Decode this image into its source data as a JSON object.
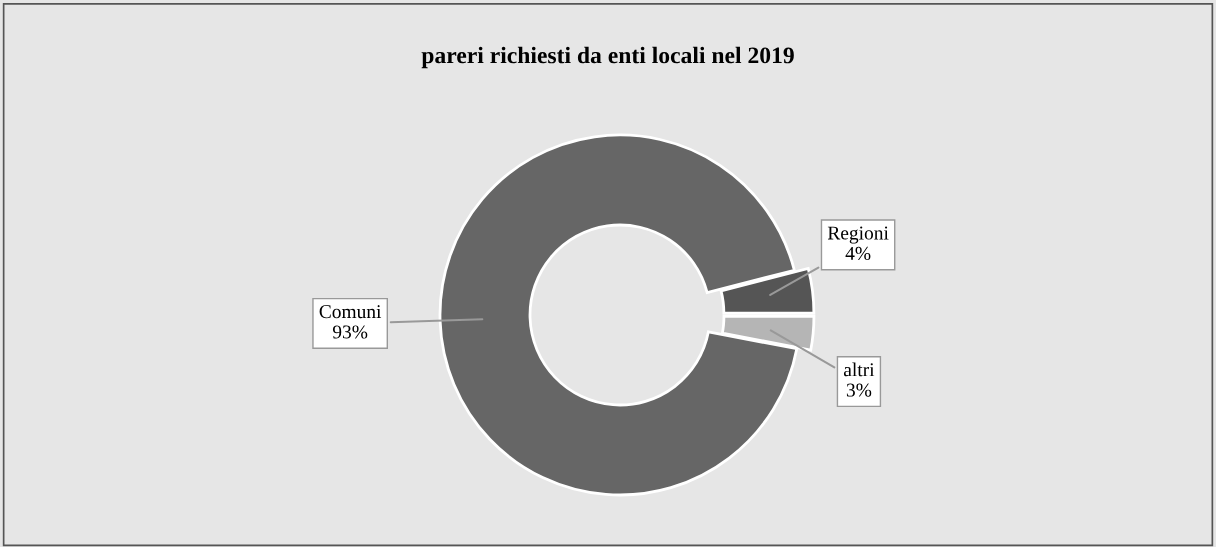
{
  "chart_data": {
    "type": "donut",
    "title": "pareri richiesti da enti locali nel 2019",
    "categories": [
      "Regioni",
      "Comuni",
      "altri"
    ],
    "values": [
      4,
      93,
      3
    ],
    "value_labels": [
      "4%",
      "93%",
      "3%"
    ],
    "colors": [
      "#555555",
      "#666666",
      "#b5b5b5"
    ]
  }
}
